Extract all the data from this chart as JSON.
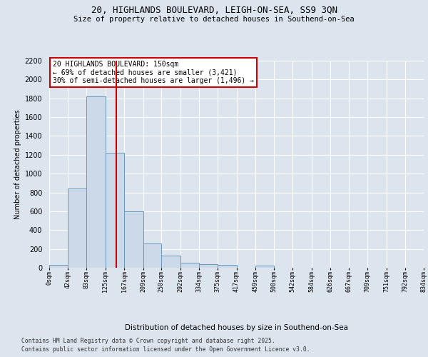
{
  "title_line1": "20, HIGHLANDS BOULEVARD, LEIGH-ON-SEA, SS9 3QN",
  "title_line2": "Size of property relative to detached houses in Southend-on-Sea",
  "xlabel": "Distribution of detached houses by size in Southend-on-Sea",
  "ylabel": "Number of detached properties",
  "annotation_line1": "20 HIGHLANDS BOULEVARD: 150sqm",
  "annotation_line2": "← 69% of detached houses are smaller (3,421)",
  "annotation_line3": "30% of semi-detached houses are larger (1,496) →",
  "bar_values": [
    30,
    840,
    1820,
    1220,
    600,
    255,
    130,
    50,
    40,
    30,
    0,
    20,
    0,
    0,
    0,
    0,
    0,
    0,
    0,
    0
  ],
  "bar_edges": [
    0,
    42,
    83,
    125,
    167,
    209,
    250,
    292,
    334,
    375,
    417,
    459,
    500,
    542,
    584,
    626,
    667,
    709,
    751,
    792,
    834
  ],
  "tick_labels": [
    "0sqm",
    "42sqm",
    "83sqm",
    "125sqm",
    "167sqm",
    "209sqm",
    "250sqm",
    "292sqm",
    "334sqm",
    "375sqm",
    "417sqm",
    "459sqm",
    "500sqm",
    "542sqm",
    "584sqm",
    "626sqm",
    "667sqm",
    "709sqm",
    "751sqm",
    "792sqm",
    "834sqm"
  ],
  "bar_color": "#ccd9e8",
  "bar_edge_color": "#6898c0",
  "vline_x": 150,
  "vline_color": "#cc0000",
  "annotation_box_color": "#cc0000",
  "ylim": [
    0,
    2200
  ],
  "yticks": [
    0,
    200,
    400,
    600,
    800,
    1000,
    1200,
    1400,
    1600,
    1800,
    2000,
    2200
  ],
  "bg_color": "#dce4ee",
  "plot_bg_color": "#dce4ee",
  "grid_color": "#ffffff",
  "footer_line1": "Contains HM Land Registry data © Crown copyright and database right 2025.",
  "footer_line2": "Contains public sector information licensed under the Open Government Licence v3.0."
}
